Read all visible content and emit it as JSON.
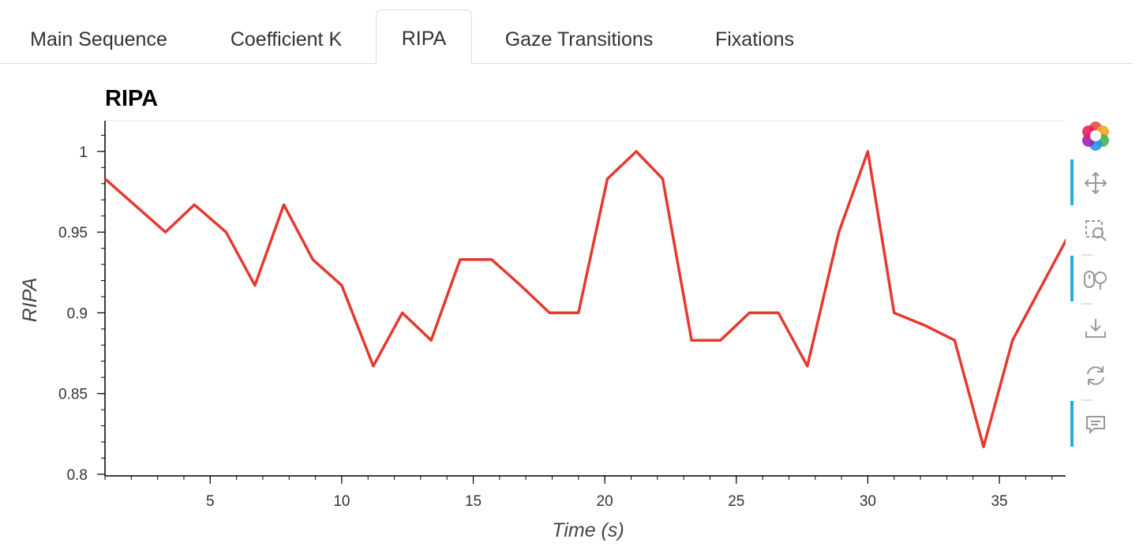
{
  "tabs": [
    {
      "label": "Main Sequence",
      "active": false
    },
    {
      "label": "Coefficient K",
      "active": false
    },
    {
      "label": "RIPA",
      "active": true
    },
    {
      "label": "Gaze Transitions",
      "active": false
    },
    {
      "label": "Fixations",
      "active": false
    }
  ],
  "toolbar": {
    "icons": [
      "bokeh-logo-icon",
      "pan-icon",
      "box-zoom-icon",
      "wheel-zoom-icon",
      "save-icon",
      "reset-icon",
      "hover-icon"
    ]
  },
  "colors": {
    "line": "#e5392f",
    "active_tool": "#26aae1"
  },
  "chart_data": {
    "type": "line",
    "title": "RIPA",
    "xlabel": "Time (s)",
    "ylabel": "RIPA",
    "xlim": [
      1.0,
      37.7
    ],
    "ylim": [
      0.799,
      1.019
    ],
    "xticks": [
      5,
      10,
      15,
      20,
      25,
      30,
      35
    ],
    "yticks": [
      0.8,
      0.85,
      0.9,
      0.95,
      1
    ],
    "ytick_labels": [
      "0.8",
      "0.85",
      "0.9",
      "0.95",
      "1"
    ],
    "grid": false,
    "series": [
      {
        "x": [
          1.0,
          3.3,
          4.4,
          5.6,
          6.7,
          7.8,
          8.9,
          10.0,
          11.2,
          12.3,
          13.4,
          14.5,
          15.7,
          16.8,
          17.9,
          19.0,
          20.1,
          21.2,
          22.2,
          23.3,
          24.4,
          25.5,
          26.6,
          27.7,
          28.9,
          30.0,
          31.0,
          32.2,
          33.3,
          34.4,
          35.5,
          37.7
        ],
        "y": [
          0.983,
          0.95,
          0.967,
          0.95,
          0.917,
          0.967,
          0.933,
          0.917,
          0.867,
          0.9,
          0.883,
          0.933,
          0.933,
          0.917,
          0.9,
          0.9,
          0.983,
          1.0,
          0.983,
          0.883,
          0.883,
          0.9,
          0.9,
          0.867,
          0.95,
          1.0,
          0.9,
          0.892,
          0.883,
          0.817,
          0.883,
          0.95
        ]
      }
    ]
  }
}
